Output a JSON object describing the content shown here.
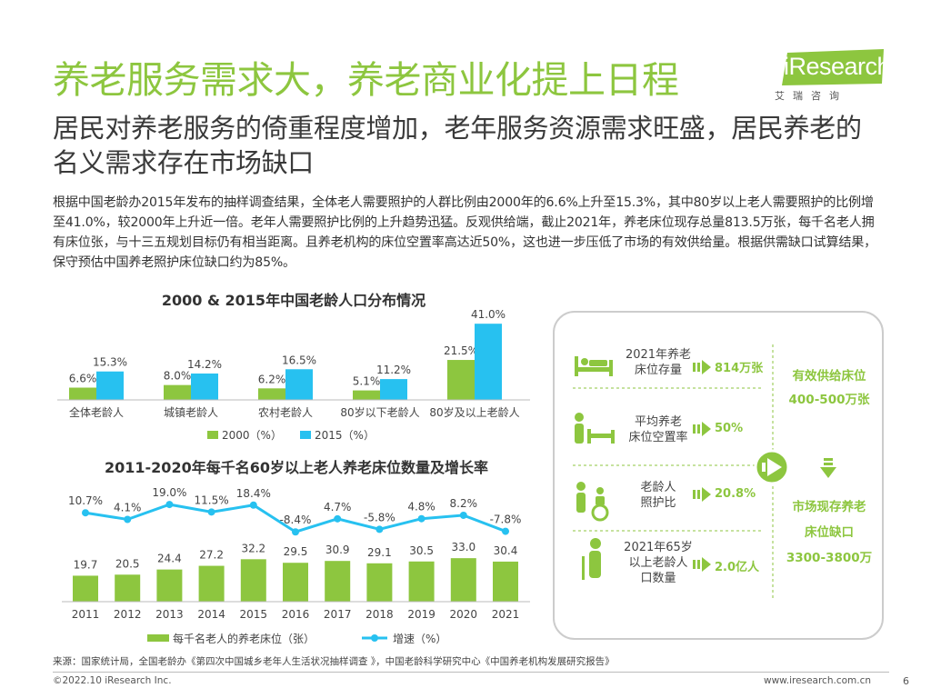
{
  "header": {
    "title": "养老服务需求大，养老商业化提上日程",
    "subtitle": "居民对养老服务的倚重程度增加，老年服务资源需求旺盛，居民养老的名义需求存在市场缺口",
    "body": "根据中国老龄办2015年发布的抽样调查结果，全体老人需要照护的人群比例由2000年的6.6%上升至15.3%，其中80岁以上老人需要照护的比例增至41.0%，较2000年上升近一倍。老年人需要照护比例的上升趋势迅猛。反观供给端，截止2021年，养老床位现存总量813.5万张，每千名老人拥有床位张，与十三五规划目标仍有相当距离。且养老机构的床位空置率高达近50%，这也进一步压低了市场的有效供给量。根据供需缺口试算结果，保守预估中国养老照护床位缺口约为85%。"
  },
  "logo": {
    "brand": "iResearch",
    "cn": "艾瑞咨询"
  },
  "panel": {
    "rows": [
      {
        "label": "2021年养老\n床位存量",
        "value": "814万张",
        "icon": "bed-person-icon"
      },
      {
        "label": "平均养老\n床位空置率",
        "value": "50%",
        "icon": "person-bed-icon"
      },
      {
        "label": "老龄人\n照护比",
        "value": "20.8%",
        "icon": "caregiver-wheelchair-icon"
      },
      {
        "label": "2021年65岁\n以上老龄人\n口数量",
        "value": "2.0亿人",
        "icon": "elderly-cane-icon"
      }
    ],
    "supply_title": "有效供给床位",
    "supply_value": "400-500万张",
    "gap_title1": "市场现存养老",
    "gap_title2": "床位缺口",
    "gap_value": "3300-3800万"
  },
  "chart_data": [
    {
      "type": "bar",
      "title": "2000 & 2015年中国老龄人口分布情况",
      "categories": [
        "全体老龄人",
        "城镇老龄人",
        "农村老龄人",
        "80岁以下老龄人",
        "80岁及以上老龄人"
      ],
      "series": [
        {
          "name": "2000（%）",
          "values": [
            6.6,
            8.0,
            6.2,
            5.1,
            21.5
          ],
          "labels": [
            "6.6%",
            "8.0%",
            "6.2%",
            "5.1%",
            "21.5%"
          ],
          "color": "#8dc63f"
        },
        {
          "name": "2015（%）",
          "values": [
            15.3,
            14.2,
            16.5,
            11.2,
            41.0
          ],
          "labels": [
            "15.3%",
            "14.2%",
            "16.5%",
            "11.2%",
            "41.0%"
          ],
          "color": "#27c1f0"
        }
      ],
      "ylim": [
        0,
        45
      ],
      "legend": "bottom"
    },
    {
      "type": "bar+line",
      "title": "2011-2020年每千名60岁以上老人养老床位数量及增长率",
      "categories": [
        "2011",
        "2012",
        "2013",
        "2014",
        "2015",
        "2016",
        "2017",
        "2018",
        "2019",
        "2020",
        "2021"
      ],
      "bars": {
        "name": "每千名老人的养老床位（张）",
        "values": [
          19.7,
          20.5,
          24.4,
          27.2,
          32.2,
          29.5,
          30.9,
          29.1,
          30.5,
          33.0,
          30.4
        ],
        "labels": [
          "19.7",
          "20.5",
          "24.4",
          "27.2",
          "32.2",
          "29.5",
          "30.9",
          "29.1",
          "30.5",
          "33.0",
          "30.4"
        ],
        "color": "#8dc63f"
      },
      "line": {
        "name": "增速（%）",
        "values": [
          10.7,
          4.1,
          19.0,
          11.5,
          18.4,
          -8.4,
          4.7,
          -5.8,
          4.8,
          8.2,
          -7.8
        ],
        "labels": [
          "10.7%",
          "4.1%",
          "19.0%",
          "11.5%",
          "18.4%",
          "-8.4%",
          "4.7%",
          "-5.8%",
          "4.8%",
          "8.2%",
          "-7.8%"
        ],
        "color": "#27c1f0"
      },
      "legend": "bottom"
    }
  ],
  "footer": {
    "source": "来源：国家统计局，全国老龄办《第四次中国城乡老年人生活状况抽样调查 》，中国老龄科学研究中心《中国养老机构发展研究报告》",
    "copyright": "©2022.10 iResearch Inc.",
    "url": "www.iresearch.com.cn",
    "page": "6"
  }
}
